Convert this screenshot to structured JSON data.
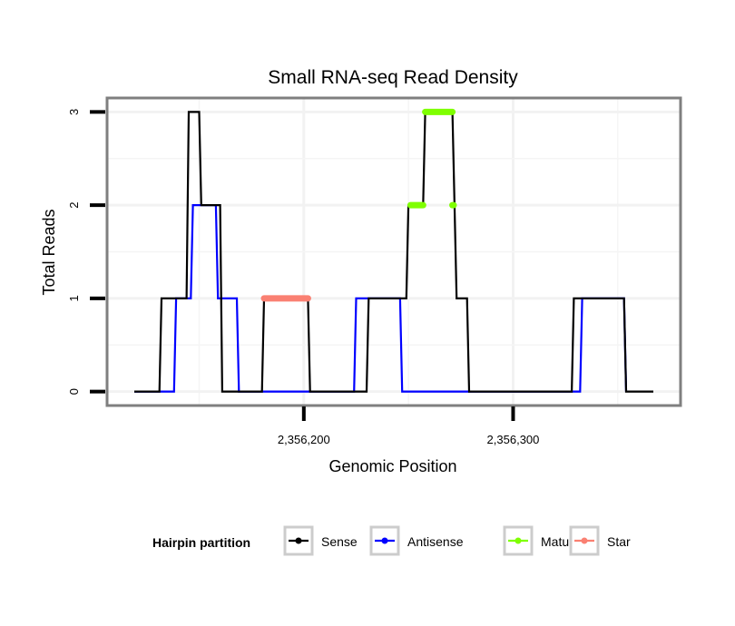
{
  "chart_data": {
    "type": "line",
    "title": "Small RNA-seq Read Density",
    "xlabel": "Genomic Position",
    "ylabel": "Total Reads",
    "xlim": [
      2356106,
      2356380
    ],
    "ylim": [
      -0.15,
      3.15
    ],
    "x_ticks": [
      {
        "value": 2356200,
        "label": "2,356,200"
      },
      {
        "value": 2356300,
        "label": "2,356,300"
      }
    ],
    "y_ticks": [
      {
        "value": 0,
        "label": "0"
      },
      {
        "value": 1,
        "label": "1"
      },
      {
        "value": 2,
        "label": "2"
      },
      {
        "value": 3,
        "label": "3"
      }
    ],
    "grid": true,
    "legend": {
      "title": "Hairpin partition",
      "placement": "bottom",
      "entries": [
        {
          "name": "Sense",
          "color": "#000000"
        },
        {
          "name": "Antisense",
          "color": "#0000ff"
        },
        {
          "name": "Mature",
          "color": "#7fff00"
        },
        {
          "name": "Star",
          "color": "#fa8072"
        }
      ]
    },
    "series": [
      {
        "name": "Sense",
        "color": "#000000",
        "style": "line",
        "points": [
          [
            2356119,
            0
          ],
          [
            2356131,
            0
          ],
          [
            2356132,
            1
          ],
          [
            2356144,
            1
          ],
          [
            2356145,
            3
          ],
          [
            2356150,
            3
          ],
          [
            2356151,
            2
          ],
          [
            2356160,
            2
          ],
          [
            2356161,
            0
          ],
          [
            2356180,
            0
          ],
          [
            2356181,
            1
          ],
          [
            2356202,
            1
          ],
          [
            2356203,
            0
          ],
          [
            2356230,
            0
          ],
          [
            2356231,
            1
          ],
          [
            2356249,
            1
          ],
          [
            2356250,
            2
          ],
          [
            2356257,
            2
          ],
          [
            2356258,
            3
          ],
          [
            2356271,
            3
          ],
          [
            2356272,
            2
          ],
          [
            2356273,
            1
          ],
          [
            2356278,
            1
          ],
          [
            2356279,
            0
          ],
          [
            2356328,
            0
          ],
          [
            2356329,
            1
          ],
          [
            2356353,
            1
          ],
          [
            2356354,
            0
          ],
          [
            2356367,
            0
          ]
        ]
      },
      {
        "name": "Antisense",
        "color": "#0000ff",
        "style": "line",
        "points": [
          [
            2356119,
            0
          ],
          [
            2356138,
            0
          ],
          [
            2356139,
            1
          ],
          [
            2356146,
            1
          ],
          [
            2356147,
            2
          ],
          [
            2356158,
            2
          ],
          [
            2356159,
            1
          ],
          [
            2356168,
            1
          ],
          [
            2356169,
            0
          ],
          [
            2356224,
            0
          ],
          [
            2356225,
            1
          ],
          [
            2356246,
            1
          ],
          [
            2356247,
            0
          ],
          [
            2356332,
            0
          ],
          [
            2356333,
            1
          ],
          [
            2356353,
            1
          ],
          [
            2356354,
            0
          ]
        ]
      },
      {
        "name": "Mature",
        "color": "#7fff00",
        "style": "thick",
        "segments": [
          [
            [
              2356251,
              2
            ],
            [
              2356257,
              2
            ]
          ],
          [
            [
              2356258,
              3
            ],
            [
              2356271,
              3
            ]
          ],
          [
            [
              2356271,
              2
            ],
            [
              2356271.6,
              2
            ]
          ]
        ]
      },
      {
        "name": "Star",
        "color": "#fa8072",
        "style": "thick",
        "segments": [
          [
            [
              2356181,
              1
            ],
            [
              2356202,
              1
            ]
          ]
        ]
      }
    ]
  }
}
